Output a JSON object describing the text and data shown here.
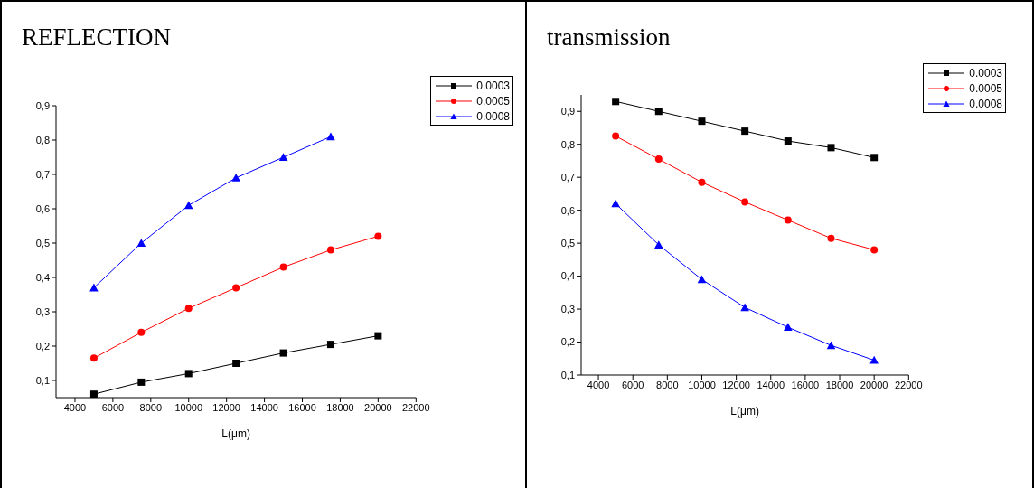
{
  "chart_data": [
    {
      "type": "line",
      "title": "REFLECTION",
      "xlabel": "L(μm)",
      "x": [
        5000,
        7500,
        10000,
        12500,
        15000,
        17500,
        20000
      ],
      "series": [
        {
          "name": "0.0003",
          "color": "#000000",
          "marker": "square",
          "values": [
            0.06,
            0.095,
            0.12,
            0.15,
            0.18,
            0.205,
            0.23
          ]
        },
        {
          "name": "0.0005",
          "color": "#ff0000",
          "marker": "circle",
          "values": [
            0.165,
            0.24,
            0.31,
            0.37,
            0.43,
            0.48,
            0.52
          ]
        },
        {
          "name": "0.0008",
          "color": "#0000ff",
          "marker": "triangle",
          "values": [
            0.37,
            0.5,
            0.61,
            0.69,
            0.75,
            0.81,
            null
          ]
        }
      ],
      "xlim": [
        3000,
        22000
      ],
      "xticks": [
        4000,
        6000,
        8000,
        10000,
        12000,
        14000,
        16000,
        18000,
        20000,
        22000
      ],
      "ylim": [
        0.05,
        0.9
      ],
      "yticks": [
        {
          "value": 0.1,
          "label": "0,1"
        },
        {
          "value": 0.2,
          "label": "0,2"
        },
        {
          "value": 0.3,
          "label": "0,3"
        },
        {
          "value": 0.4,
          "label": "0,4"
        },
        {
          "value": 0.5,
          "label": "0,5"
        },
        {
          "value": 0.6,
          "label": "0,6"
        },
        {
          "value": 0.7,
          "label": "0,7"
        },
        {
          "value": 0.8,
          "label": "0,8"
        },
        {
          "value": 0.9,
          "label": "0,9"
        }
      ],
      "grid": false,
      "legend": "top right"
    },
    {
      "type": "line",
      "title": "transmission",
      "xlabel": "L(μm)",
      "x": [
        5000,
        7500,
        10000,
        12500,
        15000,
        17500,
        20000
      ],
      "series": [
        {
          "name": "0.0003",
          "color": "#000000",
          "marker": "square",
          "values": [
            0.93,
            0.9,
            0.87,
            0.84,
            0.81,
            0.79,
            0.76
          ]
        },
        {
          "name": "0.0005",
          "color": "#ff0000",
          "marker": "circle",
          "values": [
            0.825,
            0.755,
            0.685,
            0.625,
            0.57,
            0.515,
            0.48
          ]
        },
        {
          "name": "0.0008",
          "color": "#0000ff",
          "marker": "triangle",
          "values": [
            0.62,
            0.495,
            0.39,
            0.305,
            0.245,
            0.19,
            0.145
          ]
        }
      ],
      "xlim": [
        3000,
        22000
      ],
      "xticks": [
        4000,
        6000,
        8000,
        10000,
        12000,
        14000,
        16000,
        18000,
        20000,
        22000
      ],
      "ylim": [
        0.1,
        0.95
      ],
      "yticks": [
        {
          "value": 0.1,
          "label": "0,1"
        },
        {
          "value": 0.2,
          "label": "0,2"
        },
        {
          "value": 0.3,
          "label": "0,3"
        },
        {
          "value": 0.4,
          "label": "0,4"
        },
        {
          "value": 0.5,
          "label": "0,5"
        },
        {
          "value": 0.6,
          "label": "0,6"
        },
        {
          "value": 0.7,
          "label": "0,7"
        },
        {
          "value": 0.8,
          "label": "0,8"
        },
        {
          "value": 0.9,
          "label": "0,9"
        }
      ],
      "grid": false,
      "legend": "top right"
    }
  ]
}
